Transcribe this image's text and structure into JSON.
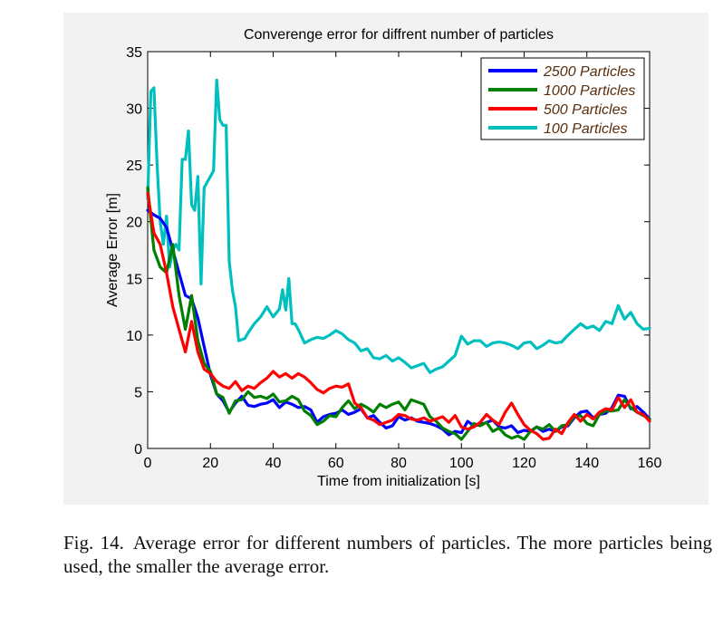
{
  "figure": {
    "caption_label": "Fig. 14.",
    "caption_text": "Average error for different numbers of particles. The more particles being used, the smaller the average error."
  },
  "chart_data": {
    "type": "line",
    "title": "Converenge error for diffrent number of particles",
    "xlabel": "Time from initialization [s]",
    "ylabel": "Average Error [m]",
    "xlim": [
      0,
      160
    ],
    "ylim": [
      0,
      35
    ],
    "xticks": [
      0,
      20,
      40,
      60,
      80,
      100,
      120,
      140,
      160
    ],
    "yticks": [
      0,
      5,
      10,
      15,
      20,
      25,
      30,
      35
    ],
    "grid": false,
    "legend_position": "top-right",
    "series": [
      {
        "name": "2500 Particles",
        "color": "#0000ff",
        "x": [
          0,
          2,
          4,
          6,
          8,
          10,
          12,
          14,
          16,
          18,
          20,
          22,
          24,
          26,
          28,
          30,
          32,
          34,
          36,
          38,
          40,
          42,
          44,
          46,
          48,
          50,
          52,
          54,
          56,
          58,
          60,
          62,
          64,
          66,
          68,
          70,
          72,
          74,
          76,
          78,
          80,
          82,
          84,
          86,
          88,
          90,
          92,
          94,
          96,
          98,
          100,
          102,
          104,
          106,
          108,
          110,
          112,
          114,
          116,
          118,
          120,
          122,
          124,
          126,
          128,
          130,
          132,
          134,
          136,
          138,
          140,
          142,
          144,
          146,
          148,
          150,
          152,
          154,
          156,
          158,
          160
        ],
        "y": [
          21,
          20.6,
          20.3,
          19.5,
          17.5,
          15.5,
          13.5,
          13.2,
          11.5,
          9,
          6.5,
          4.8,
          4.2,
          3.2,
          4,
          4.6,
          3.8,
          3.7,
          3.9,
          4,
          4.3,
          3.6,
          4.1,
          3.9,
          3.6,
          3.7,
          3.4,
          2.3,
          2.8,
          3.0,
          3.1,
          3.4,
          3.0,
          3.2,
          3.5,
          2.7,
          2.9,
          2.3,
          1.8,
          2.0,
          2.8,
          2.5,
          2.7,
          2.4,
          2.3,
          2.2,
          2.0,
          1.7,
          1.2,
          1.5,
          1.4,
          2.4,
          2.0,
          2.1,
          2.3,
          2.5,
          1.9,
          1.8,
          2.0,
          1.4,
          1.6,
          1.5,
          1.9,
          1.5,
          1.7,
          1.5,
          1.9,
          2.0,
          2.7,
          3.2,
          3.3,
          2.7,
          3.0,
          3.1,
          3.6,
          4.7,
          4.6,
          3.5,
          3.7,
          3.2,
          2.6
        ]
      },
      {
        "name": "1000 Particles",
        "color": "#007f00",
        "x": [
          0,
          2,
          4,
          6,
          8,
          10,
          12,
          14,
          16,
          18,
          20,
          22,
          24,
          26,
          28,
          30,
          32,
          34,
          36,
          38,
          40,
          42,
          44,
          46,
          48,
          50,
          52,
          54,
          56,
          58,
          60,
          62,
          64,
          66,
          68,
          70,
          72,
          74,
          76,
          78,
          80,
          82,
          84,
          86,
          88,
          90,
          92,
          94,
          96,
          98,
          100,
          102,
          104,
          106,
          108,
          110,
          112,
          114,
          116,
          118,
          120,
          122,
          124,
          126,
          128,
          130,
          132,
          134,
          136,
          138,
          140,
          142,
          144,
          146,
          148,
          150,
          152,
          154,
          156,
          158,
          160
        ],
        "y": [
          23,
          17.5,
          16,
          15.5,
          18,
          13.5,
          10.5,
          13.5,
          9.5,
          7.5,
          6.8,
          4.8,
          4.5,
          3.1,
          4.2,
          4.3,
          5.0,
          4.5,
          4.6,
          4.4,
          4.8,
          4.1,
          4.2,
          4.6,
          4.3,
          3.3,
          2.9,
          2.1,
          2.4,
          2.9,
          2.8,
          3.6,
          4.2,
          3.5,
          3.9,
          3.6,
          3.2,
          3.9,
          3.6,
          3.9,
          4.1,
          3.4,
          4.3,
          4.1,
          3.9,
          2.8,
          2.4,
          1.8,
          1.5,
          1.3,
          0.8,
          1.5,
          2.2,
          2.0,
          2.3,
          1.5,
          1.8,
          1.2,
          0.9,
          1.1,
          0.8,
          1.5,
          1.9,
          1.7,
          2.1,
          1.5,
          2.0,
          2.1,
          2.8,
          2.9,
          2.2,
          2.0,
          3.0,
          3.3,
          3.3,
          3.4,
          4.3,
          3.6,
          3.2,
          2.9,
          2.6
        ]
      },
      {
        "name": "500 Particles",
        "color": "#ff0000",
        "x": [
          0,
          2,
          4,
          6,
          8,
          10,
          12,
          14,
          16,
          18,
          20,
          22,
          24,
          26,
          28,
          30,
          32,
          34,
          36,
          38,
          40,
          42,
          44,
          46,
          48,
          50,
          52,
          54,
          56,
          58,
          60,
          62,
          64,
          66,
          68,
          70,
          72,
          74,
          76,
          78,
          80,
          82,
          84,
          86,
          88,
          90,
          92,
          94,
          96,
          98,
          100,
          102,
          104,
          106,
          108,
          110,
          112,
          114,
          116,
          118,
          120,
          122,
          124,
          126,
          128,
          130,
          132,
          134,
          136,
          138,
          140,
          142,
          144,
          146,
          148,
          150,
          152,
          154,
          156,
          158,
          160
        ],
        "y": [
          22.5,
          19,
          18,
          15.5,
          12.5,
          10.5,
          8.5,
          11.2,
          8.5,
          7.0,
          6.6,
          5.9,
          5.5,
          5.3,
          5.9,
          5.1,
          5.5,
          5.3,
          5.8,
          6.2,
          6.8,
          6.3,
          6.6,
          6.2,
          6.6,
          6.3,
          5.8,
          5.2,
          4.9,
          5.3,
          5.5,
          5.4,
          5.7,
          4.0,
          3.6,
          2.7,
          2.5,
          2.1,
          2.3,
          2.5,
          3.0,
          2.9,
          2.6,
          2.5,
          2.7,
          2.4,
          2.6,
          2.8,
          2.3,
          2.9,
          1.9,
          1.7,
          1.9,
          2.3,
          3.0,
          2.5,
          2.1,
          3.2,
          4.0,
          3.0,
          2.1,
          1.6,
          1.3,
          0.8,
          0.9,
          1.7,
          1.3,
          2.3,
          3.0,
          2.4,
          3.0,
          2.6,
          3.2,
          3.5,
          3.4,
          4.5,
          3.6,
          4.3,
          3.2,
          3.0,
          2.4
        ]
      },
      {
        "name": "100 Particles",
        "color": "#00bfbf",
        "x": [
          0,
          1,
          2,
          3,
          4,
          5,
          6,
          7,
          8,
          9,
          10,
          11,
          12,
          13,
          14,
          15,
          16,
          17,
          18,
          19,
          20,
          21,
          22,
          23,
          24,
          25,
          26,
          27,
          28,
          29,
          30,
          31,
          32,
          34,
          36,
          38,
          40,
          42,
          43,
          44,
          45,
          46,
          47,
          48,
          50,
          52,
          54,
          56,
          58,
          60,
          62,
          64,
          66,
          68,
          70,
          72,
          74,
          76,
          78,
          80,
          82,
          84,
          86,
          88,
          90,
          92,
          94,
          96,
          98,
          100,
          102,
          104,
          106,
          108,
          110,
          112,
          114,
          116,
          118,
          120,
          122,
          124,
          126,
          128,
          130,
          132,
          134,
          136,
          138,
          140,
          142,
          144,
          146,
          148,
          150,
          152,
          154,
          156,
          158,
          160
        ],
        "y": [
          22,
          31.5,
          31.8,
          25,
          20,
          18,
          20.5,
          16,
          17.5,
          18,
          17.5,
          25.5,
          25.5,
          28,
          21.5,
          21,
          24,
          14.5,
          23,
          23.5,
          24,
          24.5,
          32.5,
          29,
          28.5,
          28.5,
          16.5,
          14,
          12.5,
          9.5,
          9.6,
          9.7,
          10.2,
          11.0,
          11.6,
          12.5,
          11.6,
          12.3,
          14.0,
          12.2,
          15.0,
          11.0,
          11.0,
          10.5,
          9.3,
          9.6,
          9.8,
          9.7,
          10.0,
          10.4,
          10.1,
          9.6,
          9.3,
          8.6,
          8.8,
          8.0,
          7.9,
          8.2,
          7.7,
          8.0,
          7.6,
          7.1,
          7.3,
          7.5,
          6.7,
          7.0,
          7.2,
          7.7,
          8.2,
          9.9,
          9.2,
          9.5,
          9.5,
          9.0,
          9.3,
          9.4,
          9.3,
          9.1,
          8.8,
          9.3,
          9.4,
          8.8,
          9.1,
          9.5,
          9.3,
          9.4,
          10.0,
          10.5,
          11.0,
          10.6,
          10.8,
          10.4,
          11.2,
          11.0,
          12.6,
          11.4,
          12.0,
          11.0,
          10.5,
          10.6
        ]
      }
    ]
  }
}
